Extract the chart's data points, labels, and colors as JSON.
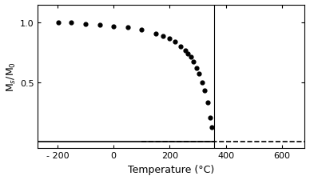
{
  "title": "",
  "xlabel": "Temperature (°C)",
  "ylabel": "M$_s$/M$_0$",
  "xlim": [
    -270,
    680
  ],
  "ylim": [
    -0.05,
    1.15
  ],
  "yticks": [
    0.5,
    1.0
  ],
  "xticks": [
    -200,
    0,
    200,
    400,
    600
  ],
  "xtick_labels": [
    "- 200",
    "0",
    "200",
    "400",
    "600"
  ],
  "curie_temp_C": 358,
  "line_color": "#000000",
  "dot_color": "#000000",
  "background_color": "#ffffff",
  "exp_data_x": [
    -196,
    -150,
    -100,
    -50,
    0,
    50,
    100,
    150,
    175,
    200,
    220,
    240,
    255,
    265,
    275,
    285,
    295,
    305,
    315,
    325,
    335,
    345,
    350
  ],
  "exp_data_y": [
    1.0,
    1.0,
    0.99,
    0.98,
    0.97,
    0.96,
    0.94,
    0.91,
    0.89,
    0.87,
    0.84,
    0.8,
    0.77,
    0.74,
    0.71,
    0.67,
    0.62,
    0.57,
    0.5,
    0.43,
    0.33,
    0.2,
    0.12
  ]
}
